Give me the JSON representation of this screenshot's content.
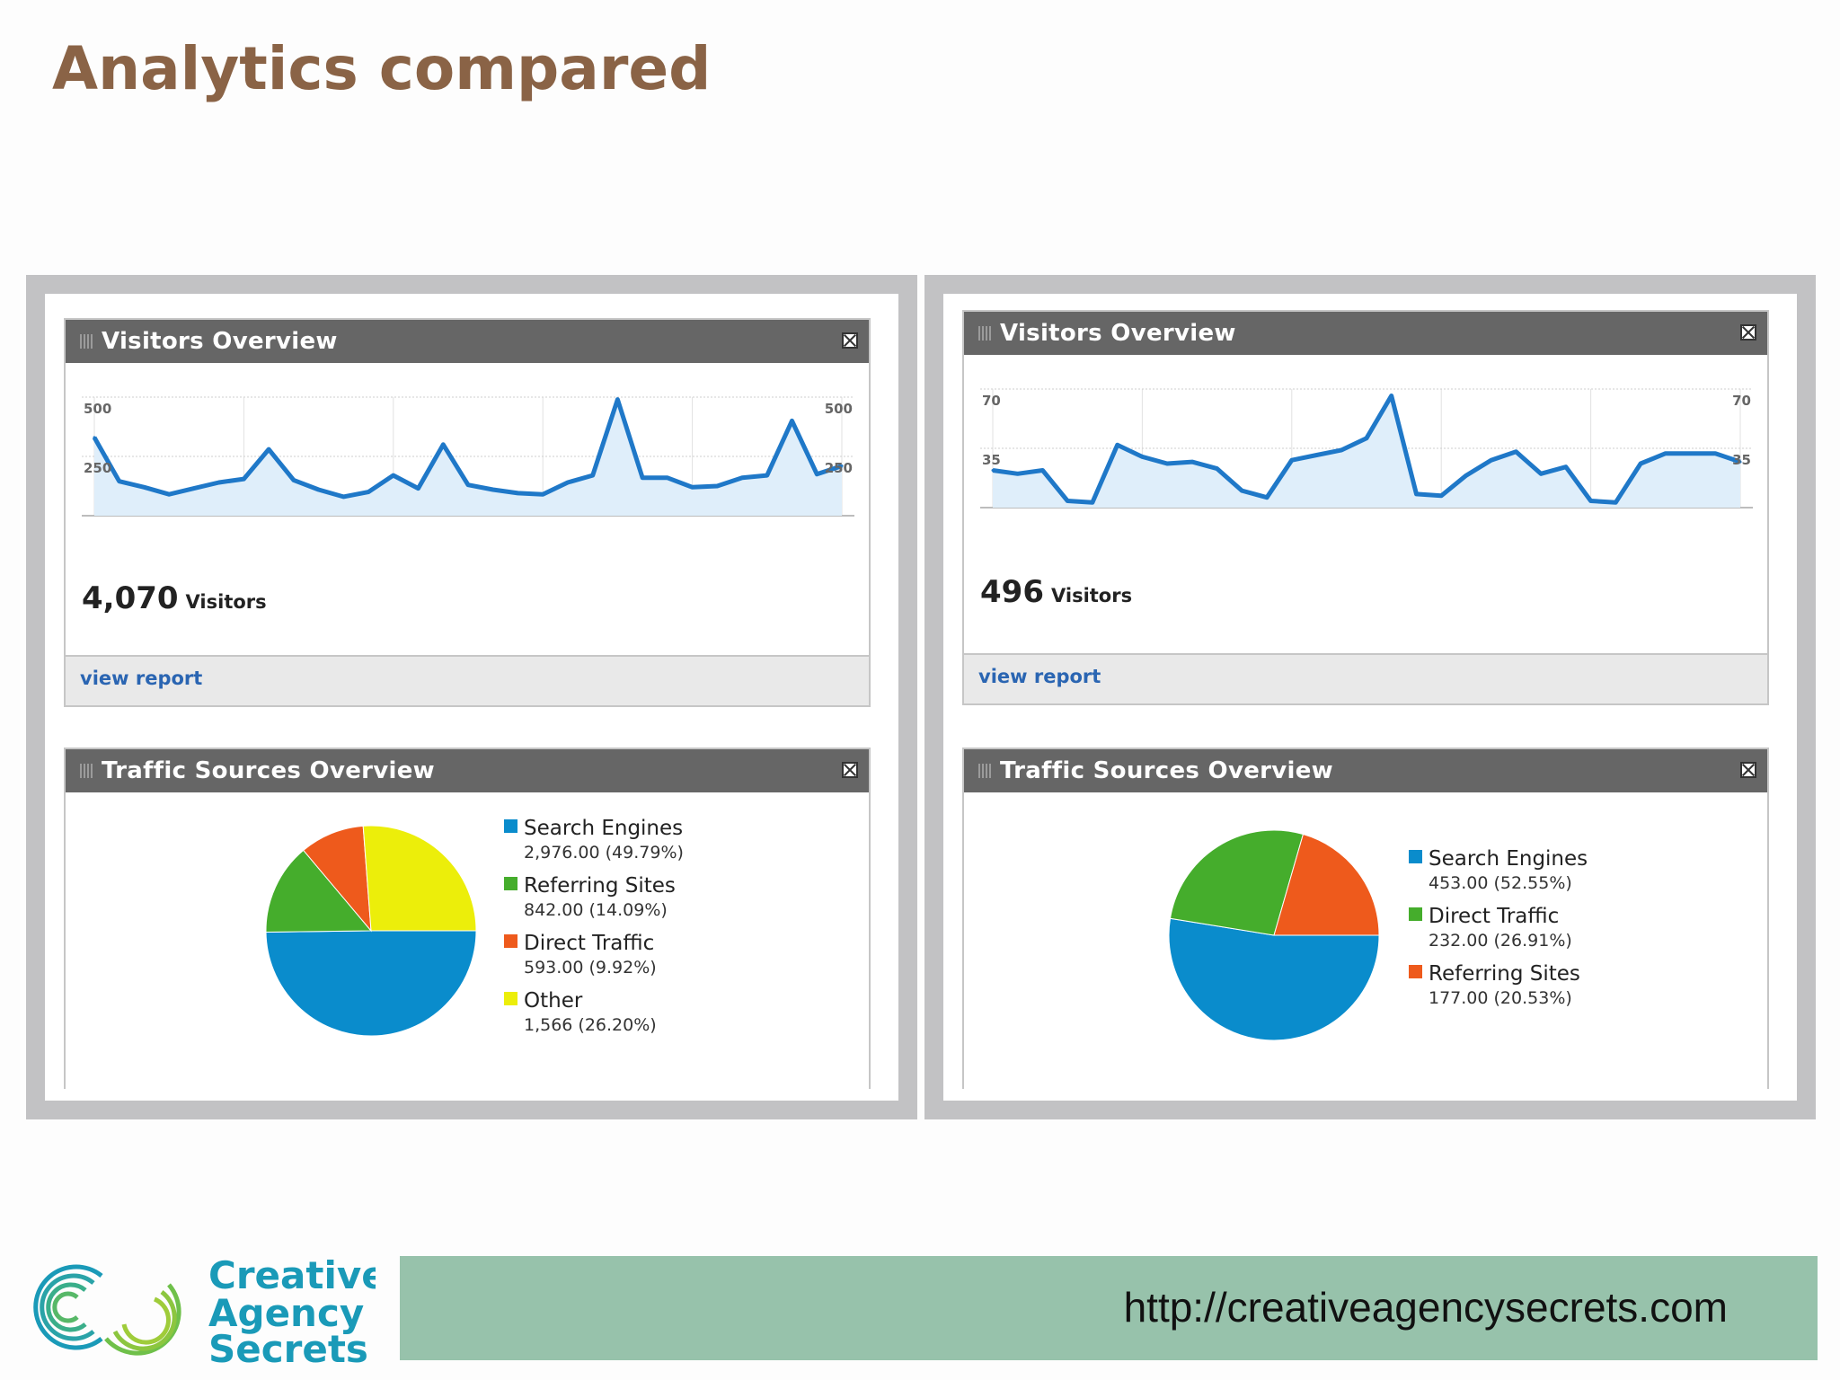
{
  "slide": {
    "title": "Analytics compared"
  },
  "colors": {
    "line": "#1f78c8",
    "fill": "#dfeefa",
    "search": "#0a8ccc",
    "referring": "#45ad2c",
    "direct": "#ee5a1c",
    "other": "#ecee0a"
  },
  "panels": [
    {
      "visitors_widget": {
        "title": "Visitors Overview",
        "total": "4,070",
        "total_label": "Visitors",
        "view_report": "view report"
      },
      "traffic_widget": {
        "title": "Traffic Sources Overview"
      }
    },
    {
      "visitors_widget": {
        "title": "Visitors Overview",
        "total": "496",
        "total_label": "Visitors",
        "view_report": "view report"
      },
      "traffic_widget": {
        "title": "Traffic Sources Overview"
      }
    }
  ],
  "chart_data": [
    {
      "type": "line",
      "y_tick_labels": [
        "500",
        "250"
      ],
      "y_tick_values": [
        500,
        250
      ],
      "ylim": [
        0,
        500
      ],
      "values": [
        330,
        145,
        120,
        90,
        115,
        140,
        155,
        280,
        150,
        110,
        80,
        100,
        170,
        115,
        300,
        130,
        110,
        95,
        90,
        140,
        170,
        490,
        160,
        160,
        120,
        125,
        160,
        170,
        400,
        175,
        210
      ],
      "grid": true
    },
    {
      "type": "line",
      "y_tick_labels": [
        "70",
        "35"
      ],
      "y_tick_values": [
        70,
        35
      ],
      "ylim": [
        0,
        70
      ],
      "values": [
        22,
        20,
        22,
        4,
        3,
        37,
        30,
        26,
        27,
        23,
        10,
        6,
        28,
        31,
        34,
        41,
        66,
        8,
        7,
        19,
        28,
        33,
        20,
        24,
        4,
        3,
        26,
        32,
        32,
        32,
        27
      ],
      "grid": true
    },
    {
      "type": "pie",
      "slices": [
        {
          "name": "Search Engines",
          "label": "2,976.00 (49.79%)",
          "value": 49.79,
          "color": "#0a8ccc"
        },
        {
          "name": "Referring Sites",
          "label": "842.00 (14.09%)",
          "value": 14.09,
          "color": "#45ad2c"
        },
        {
          "name": "Direct Traffic",
          "label": "593.00 (9.92%)",
          "value": 9.92,
          "color": "#ee5a1c"
        },
        {
          "name": "Other",
          "label": "1,566 (26.20%)",
          "value": 26.2,
          "color": "#ecee0a"
        }
      ]
    },
    {
      "type": "pie",
      "slices": [
        {
          "name": "Search Engines",
          "label": "453.00 (52.55%)",
          "value": 52.55,
          "color": "#0a8ccc"
        },
        {
          "name": "Direct Traffic",
          "label": "232.00 (26.91%)",
          "value": 26.91,
          "color": "#45ad2c"
        },
        {
          "name": "Referring Sites",
          "label": "177.00 (20.53%)",
          "value": 20.53,
          "color": "#ee5a1c"
        }
      ]
    }
  ],
  "footer": {
    "logo_line1": "Creative",
    "logo_line2": "Agency",
    "logo_line3": "Secrets",
    "url": "http://creativeagencysecrets.com"
  }
}
